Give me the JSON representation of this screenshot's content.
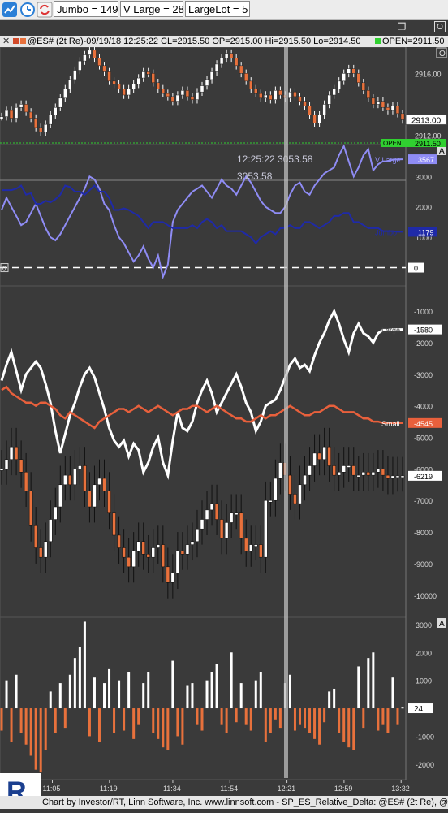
{
  "toolbar": {
    "jumbo": "Jumbo = 149",
    "vlarge": "V Large = 28",
    "largelot": "LargeLot = 5",
    "icons": [
      "chart-app-icon",
      "clock-icon",
      "sync-icon"
    ]
  },
  "window_controls": {
    "restore": "❐",
    "close": "O"
  },
  "infobar": {
    "close_glyph": "✕",
    "text": "@ES# (2t Re)-09/19/18 12:25:22 CL=2915.50 OP=2915.00 Hi=2915.50 Lo=2914.50",
    "open_label": "OPEN=2911.50"
  },
  "footer": {
    "text": "Chart by Investor/RT, Linn Software, Inc. www.linnsoft.com - SP_ES_Relative_Delta: @ES# (2t Re), @E"
  },
  "colors": {
    "background": "#3a3a3a",
    "vlarge": "#8f8cf5",
    "jumbo": "#1f2aa8",
    "large": "#ffffff",
    "small": "#e8603c",
    "bar_up": "#ffffff",
    "bar_down": "#e8713c",
    "open_line": "#30d030"
  },
  "chart_data": [
    {
      "type": "line",
      "name": "price",
      "ylim": [
        2911.5,
        2917.7
      ],
      "yticks": [
        "2916.00",
        "2912.00"
      ],
      "last_label": "2913.00",
      "open_value": 2911.5,
      "open_label": "2911.50",
      "open_tag": "OPEN",
      "x": [
        0,
        1,
        2,
        3,
        4,
        5,
        6,
        7,
        8,
        9,
        10,
        11,
        12,
        13,
        14,
        15,
        16,
        17,
        18,
        19,
        20,
        21,
        22,
        23,
        24,
        25,
        26,
        27,
        28,
        29,
        30,
        31,
        32,
        33,
        34,
        35,
        36,
        37,
        38,
        39,
        40,
        41,
        42,
        43,
        44,
        45,
        46,
        47,
        48,
        49,
        50,
        51,
        52,
        53,
        54,
        55,
        56,
        57,
        58,
        59,
        60,
        61,
        62,
        63,
        64,
        65,
        66,
        67,
        68,
        69,
        70,
        71,
        72,
        73,
        74,
        75,
        76,
        77,
        78,
        79,
        80,
        81,
        82
      ],
      "values": [
        2913.2,
        2913.6,
        2913.1,
        2913.8,
        2914.0,
        2913.5,
        2913.1,
        2912.5,
        2912.2,
        2912.7,
        2913.3,
        2913.8,
        2914.4,
        2915.0,
        2915.6,
        2916.2,
        2916.8,
        2917.2,
        2917.5,
        2917.0,
        2916.5,
        2916.1,
        2915.5,
        2915.3,
        2915.0,
        2914.6,
        2915.0,
        2915.3,
        2915.7,
        2916.1,
        2916.0,
        2915.4,
        2915.0,
        2914.7,
        2914.5,
        2914.2,
        2914.6,
        2914.9,
        2914.5,
        2914.3,
        2914.8,
        2915.2,
        2915.6,
        2916.1,
        2916.6,
        2917.0,
        2917.3,
        2917.0,
        2916.5,
        2916.0,
        2915.5,
        2915.0,
        2914.7,
        2914.4,
        2914.6,
        2914.3,
        2914.9,
        2914.6,
        2914.4,
        2914.8,
        2914.5,
        2914.2,
        2913.9,
        2913.3,
        2912.8,
        2913.3,
        2914.0,
        2914.6,
        2915.0,
        2915.5,
        2916.0,
        2916.3,
        2916.0,
        2915.4,
        2914.9,
        2914.4,
        2914.0,
        2914.2,
        2913.8,
        2913.6,
        2913.9,
        2913.4,
        2913.0
      ]
    },
    {
      "type": "line",
      "name": "delta-upper",
      "ylim": [
        -600,
        4050
      ],
      "yticks": [
        3000,
        2000,
        1000,
        0
      ],
      "zero_label": "0",
      "crosshair_time": "12:25:22",
      "crosshair_value": "3053.58",
      "series": [
        {
          "name": "V Large",
          "last": "3567",
          "values": [
            1900,
            2300,
            2000,
            1700,
            1400,
            1500,
            1800,
            2100,
            1700,
            1300,
            1000,
            900,
            1100,
            1400,
            1700,
            2000,
            2300,
            2600,
            3000,
            2900,
            2600,
            2100,
            1900,
            1400,
            1000,
            800,
            500,
            200,
            400,
            700,
            300,
            0,
            400,
            -300,
            100,
            1500,
            1900,
            2100,
            2300,
            2500,
            2600,
            2700,
            2500,
            2300,
            2600,
            2900,
            2700,
            2600,
            2400,
            2700,
            3000,
            2800,
            2500,
            2200,
            2000,
            1900,
            1800,
            1800,
            2000,
            2400,
            2700,
            2800,
            2500,
            2400,
            2700,
            2900,
            3100,
            3200,
            3300,
            3700,
            4000,
            3500,
            3000,
            3300,
            3700,
            3900,
            3200,
            3400,
            3500,
            3500,
            3550,
            3560,
            3567
          ]
        },
        {
          "name": "Jumbo",
          "last": "1179",
          "values": [
            2550,
            2550,
            2550,
            2600,
            2700,
            2400,
            2450,
            2100,
            2100,
            2200,
            2150,
            2250,
            2400,
            2700,
            2650,
            2500,
            2500,
            2400,
            2550,
            2700,
            2500,
            2500,
            2300,
            1900,
            1900,
            1950,
            1900,
            1800,
            1700,
            1500,
            1300,
            1500,
            1500,
            1500,
            1400,
            1300,
            1300,
            1300,
            1300,
            1400,
            1300,
            1500,
            1600,
            1500,
            1300,
            1400,
            1200,
            1200,
            1200,
            1200,
            1100,
            1000,
            800,
            1000,
            1100,
            1200,
            1100,
            1300,
            1300,
            1400,
            1300,
            1300,
            1500,
            1500,
            1400,
            1300,
            1400,
            1500,
            1700,
            1700,
            1800,
            1800,
            1500,
            1500,
            1400,
            1300,
            1300,
            1300,
            1200,
            1200,
            1200,
            1179,
            1179
          ]
        }
      ]
    },
    {
      "type": "line",
      "name": "delta-lower",
      "ylim": [
        -10700,
        -200
      ],
      "yticks": [
        -1000,
        -2000,
        -3000,
        -4000,
        -5000,
        -6000,
        -7000,
        -8000,
        -9000,
        -10000
      ],
      "last_close": "-6219",
      "series": [
        {
          "name": "Large",
          "last": "-1580",
          "values": [
            -3200,
            -2700,
            -2300,
            -2900,
            -3500,
            -3000,
            -2800,
            -2600,
            -2800,
            -3300,
            -3900,
            -4800,
            -5500,
            -4900,
            -4300,
            -3900,
            -3400,
            -3000,
            -2800,
            -3100,
            -3600,
            -4100,
            -4700,
            -5100,
            -5300,
            -5100,
            -5600,
            -5200,
            -5400,
            -6100,
            -5800,
            -5300,
            -5000,
            -5800,
            -6200,
            -5100,
            -4200,
            -4700,
            -4800,
            -4500,
            -3900,
            -3500,
            -3200,
            -3600,
            -4200,
            -3900,
            -3600,
            -3300,
            -3000,
            -3400,
            -3900,
            -4200,
            -4800,
            -4500,
            -4000,
            -3900,
            -3800,
            -3500,
            -3100,
            -2700,
            -2500,
            -2800,
            -2700,
            -2900,
            -2400,
            -2000,
            -1700,
            -1300,
            -1000,
            -1400,
            -1900,
            -2300,
            -1700,
            -1400,
            -1700,
            -1800,
            -2000,
            -1700,
            -1600,
            -1600,
            -1580,
            -1580,
            -1580
          ]
        },
        {
          "name": "Small",
          "last": "-4545",
          "values": [
            -3500,
            -3400,
            -3600,
            -3700,
            -3800,
            -3900,
            -3900,
            -4000,
            -3900,
            -3900,
            -4000,
            -4100,
            -4300,
            -4400,
            -4200,
            -4300,
            -4400,
            -4500,
            -4600,
            -4700,
            -4500,
            -4400,
            -4300,
            -4200,
            -4100,
            -4100,
            -4200,
            -4100,
            -4000,
            -4100,
            -4200,
            -4100,
            -4000,
            -4100,
            -4200,
            -4300,
            -4200,
            -4100,
            -4100,
            -4000,
            -4000,
            -4100,
            -4200,
            -4100,
            -4000,
            -4100,
            -4200,
            -4300,
            -4400,
            -4400,
            -4500,
            -4500,
            -4400,
            -4300,
            -4400,
            -4300,
            -4300,
            -4200,
            -4100,
            -4000,
            -4100,
            -4200,
            -4300,
            -4300,
            -4200,
            -4200,
            -4100,
            -4000,
            -4000,
            -4100,
            -4200,
            -4200,
            -4200,
            -4300,
            -4400,
            -4400,
            -4500,
            -4500,
            -4545,
            -4545,
            -4545,
            -4545,
            -4545
          ]
        },
        {
          "name": "delta-close",
          "values": [
            -6000,
            -5700,
            -5300,
            -5700,
            -6100,
            -6700,
            -7800,
            -8500,
            -8800,
            -8300,
            -7600,
            -7200,
            -6500,
            -6200,
            -6500,
            -6000,
            -5900,
            -6700,
            -7200,
            -6500,
            -6300,
            -6700,
            -7400,
            -8100,
            -8500,
            -8800,
            -9100,
            -8600,
            -8300,
            -8700,
            -8800,
            -8500,
            -8400,
            -9100,
            -9600,
            -9300,
            -8600,
            -8700,
            -8400,
            -8300,
            -7900,
            -7600,
            -7300,
            -7100,
            -7600,
            -8200,
            -7700,
            -7400,
            -7400,
            -8200,
            -8600,
            -8400,
            -8400,
            -8800,
            -7000,
            -7000,
            -6300,
            -5800,
            -6200,
            -6800,
            -7100,
            -6500,
            -6200,
            -5900,
            -5500,
            -5700,
            -5300,
            -5900,
            -6200,
            -6100,
            -5900,
            -5900,
            -6200,
            -6200,
            -6100,
            -6200,
            -6100,
            -6000,
            -6200,
            -6300,
            -6219,
            -6219,
            -6219
          ]
        }
      ]
    },
    {
      "type": "bar",
      "name": "histogram",
      "ylim": [
        -2500,
        3200
      ],
      "yticks": [
        3000,
        2000,
        1000,
        0,
        -1000,
        -2000
      ],
      "last_label": "24",
      "values": [
        -800,
        1000,
        -1200,
        1200,
        -900,
        -1300,
        -1700,
        -2200,
        -2300,
        -1500,
        600,
        -900,
        900,
        -700,
        1200,
        1800,
        2200,
        3100,
        -1000,
        1100,
        -1200,
        900,
        1400,
        -900,
        1000,
        -800,
        1300,
        -1100,
        -600,
        900,
        1300,
        -900,
        -1100,
        -1400,
        -1500,
        1700,
        -1000,
        -1300,
        800,
        900,
        -600,
        -800,
        1000,
        1300,
        1600,
        -600,
        -900,
        2000,
        -500,
        900,
        -600,
        -800,
        1000,
        1300,
        -1200,
        -900,
        -400,
        -700,
        900,
        1200,
        -800,
        -600,
        -700,
        -900,
        -1100,
        -1300,
        -500,
        600,
        700,
        -900,
        -1200,
        -1400,
        -1500,
        1500,
        -700,
        1800,
        2000,
        -800,
        -600,
        -900,
        1100,
        -600,
        24
      ],
      "xticks": [
        {
          "label": "11:05",
          "i": 8
        },
        {
          "label": "11:19",
          "i": 17
        },
        {
          "label": "11:34",
          "i": 27
        },
        {
          "label": "11:54",
          "i": 36
        },
        {
          "label": "12:21",
          "i": 45
        },
        {
          "label": "12:59",
          "i": 54
        },
        {
          "label": "13:32",
          "i": 63
        }
      ]
    }
  ]
}
